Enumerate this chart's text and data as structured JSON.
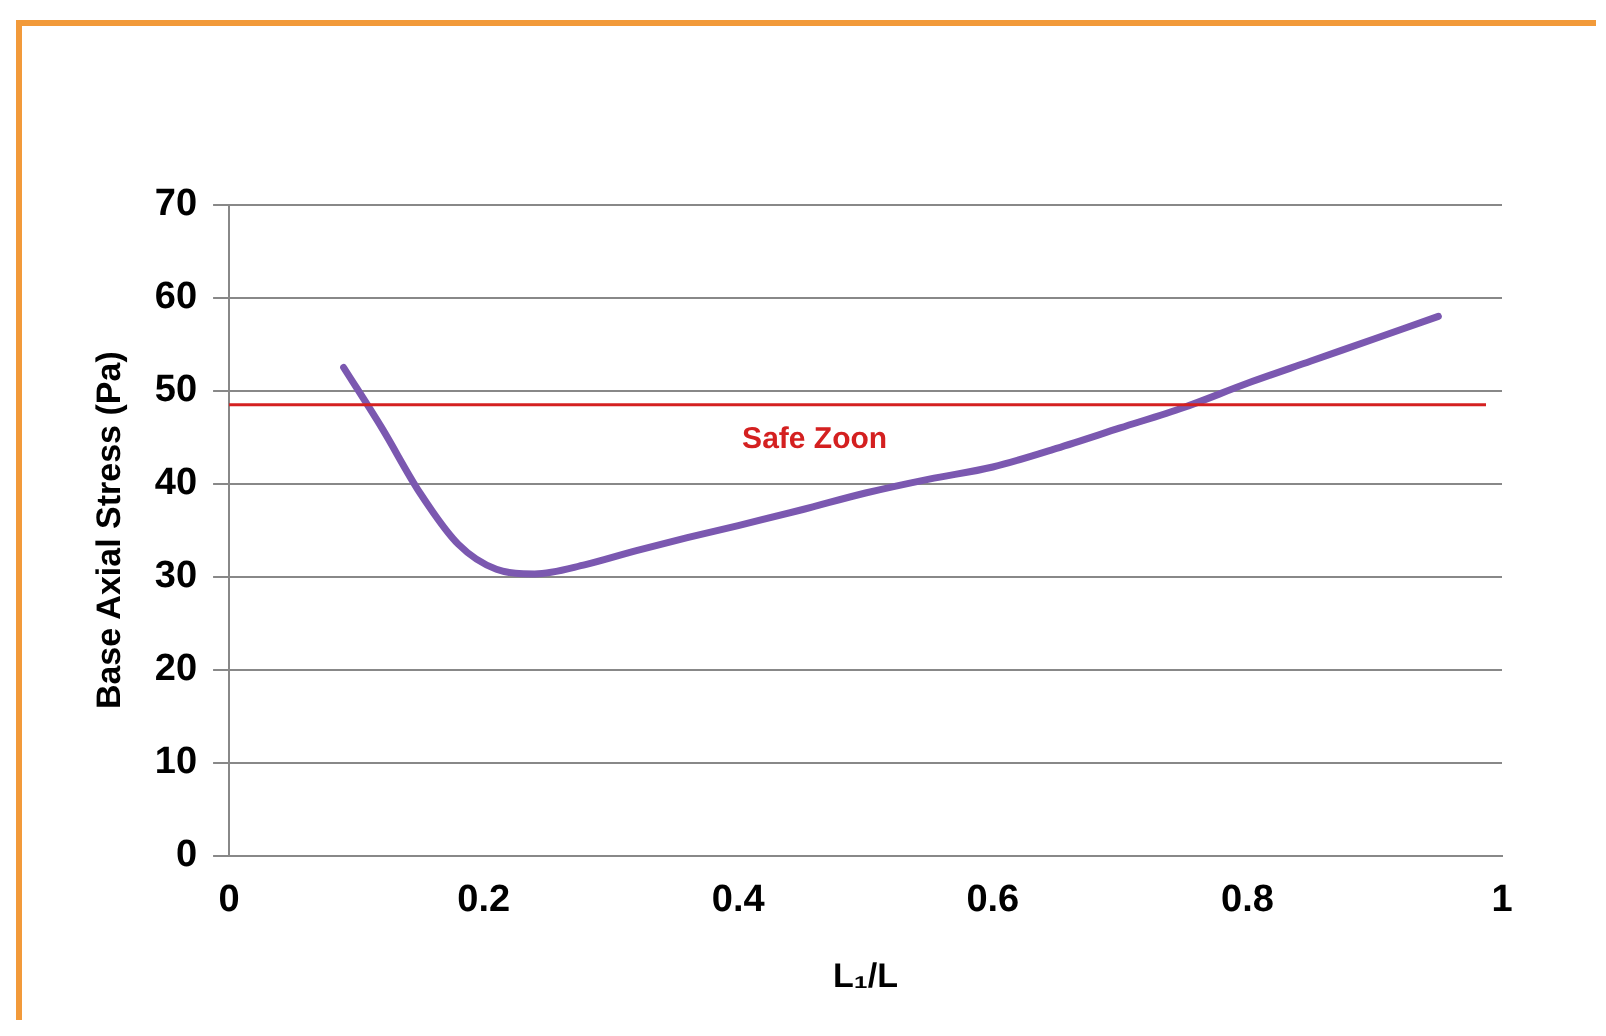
{
  "chart_data": {
    "type": "line",
    "xlabel": "L₁/L",
    "ylabel": "Base Axial Stress (Pa)",
    "x": [
      0.09,
      0.12,
      0.15,
      0.18,
      0.21,
      0.24,
      0.28,
      0.32,
      0.36,
      0.4,
      0.45,
      0.5,
      0.55,
      0.6,
      0.65,
      0.7,
      0.75,
      0.8,
      0.85,
      0.9,
      0.95
    ],
    "series": [
      {
        "color": "#7b58b0",
        "values": [
          52.5,
          46,
          39,
          33.5,
          30.8,
          30.3,
          31.3,
          32.8,
          34.2,
          35.5,
          37.2,
          39,
          40.5,
          41.8,
          43.8,
          46,
          48.2,
          50.8,
          53.2,
          55.6,
          58
        ]
      }
    ],
    "xlim": [
      0,
      1
    ],
    "xticks": [
      0,
      0.2,
      0.4,
      0.6,
      0.8,
      1
    ],
    "ylim": [
      0,
      70
    ],
    "yticks": [
      0,
      10,
      20,
      30,
      40,
      50,
      60,
      70
    ],
    "grid": "y",
    "legend": false,
    "marker": "none",
    "line_style": "solid",
    "ref_lines": [
      {
        "axis": "y",
        "value": 48.5,
        "label": "Safe Zoon",
        "color": "#d42020"
      }
    ]
  }
}
